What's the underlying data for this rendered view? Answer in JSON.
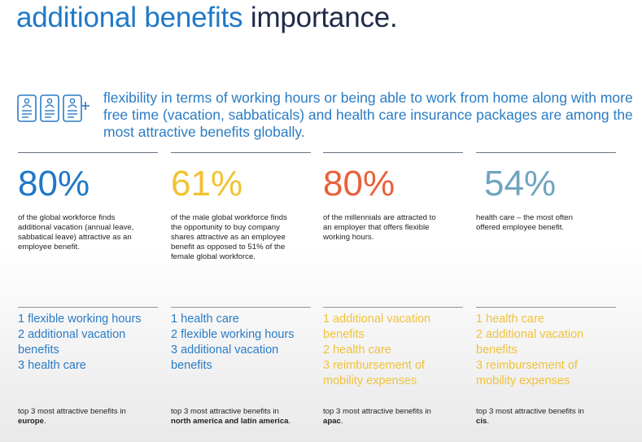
{
  "title": {
    "part1": "additional benefits",
    "part2": "importance."
  },
  "icons": [
    "person-document-icon",
    "person-document-icon",
    "person-document-add-icon"
  ],
  "intro": "flexibility in terms of working hours or being able to work from home along with more free time (vacation, sabbaticals) and health care insurance packages are among the most attractive benefits globally.",
  "columns": [
    {
      "stat": "80%",
      "stat_color": "#1f78c8",
      "desc": "of the global workforce finds additional vacation (annual leave, sabbatical leave) attractive as an employee benefit.",
      "list": [
        "1 flexible working hours",
        "2 additional vacation",
        "benefits",
        "3 health care"
      ],
      "list_color": "#2a7cc4",
      "foot_prefix": "top 3 most attractive benefits in",
      "foot_region": "europe",
      "foot_suffix": "."
    },
    {
      "stat": "61%",
      "stat_color": "#f2c230",
      "desc": "of the male global workforce finds the opportunity to buy company shares attractive as an employee benefit as opposed to 51% of the female global workforce.",
      "list": [
        "1 health care",
        "2 flexible working hours",
        "3 additional vacation",
        "benefits"
      ],
      "list_color": "#2a7cc4",
      "foot_prefix": "top 3 most attractive benefits in",
      "foot_region": "north america and latin america",
      "foot_suffix": "."
    },
    {
      "stat": "80%",
      "stat_color": "#e8613a",
      "desc": "of the millennials are attracted to an employer that offers flexible working hours.",
      "list": [
        "1 additional vacation",
        "benefits",
        "2 health care",
        "3 reimbursement of",
        "mobility expenses"
      ],
      "list_color": "#f0c23a",
      "foot_prefix": "top 3 most attractive benefits in",
      "foot_region": "apac",
      "foot_suffix": "."
    },
    {
      "stat": "54%",
      "stat_color": "#6fa5c0",
      "desc": "health care – the most often offered employee benefit.",
      "list": [
        "1 health care",
        "2 additional vacation",
        "benefits",
        "3 reimbursement of",
        "mobility expenses"
      ],
      "list_color": "#f0c23a",
      "foot_prefix": "top 3 most attractive benefits in",
      "foot_region": "cis",
      "foot_suffix": "."
    }
  ]
}
